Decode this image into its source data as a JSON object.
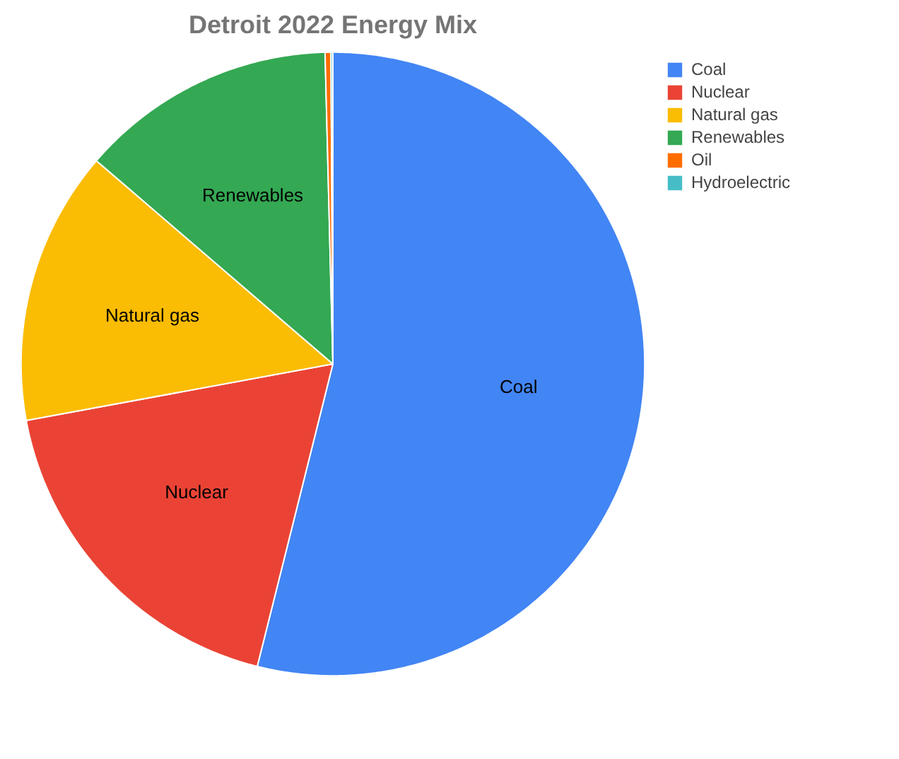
{
  "chart_data": {
    "type": "pie",
    "title": "Detroit 2022 Energy Mix",
    "categories": [
      "Coal",
      "Nuclear",
      "Natural gas",
      "Renewables",
      "Oil",
      "Hydroelectric"
    ],
    "values": [
      53.9,
      18.2,
      14.2,
      13.3,
      0.3,
      0.1
    ],
    "colors": [
      "#4285f4",
      "#ea4335",
      "#fbbc04",
      "#34a853",
      "#ff6d01",
      "#46bdc6"
    ],
    "legend": "right"
  }
}
